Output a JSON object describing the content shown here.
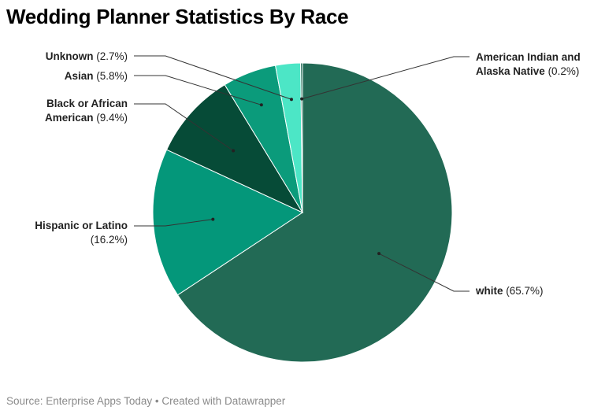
{
  "title": "Wedding Planner Statistics By Race",
  "source_label": "Source:",
  "source_name": "Enterprise Apps Today",
  "separator": "•",
  "credit": "Created with Datawrapper",
  "chart_data": {
    "type": "pie",
    "title": "Wedding Planner Statistics By Race",
    "slices": [
      {
        "name": "white",
        "value": 65.7,
        "value_label": "(65.7%)",
        "color": "#226a55",
        "label_lines": [
          {
            "name": "white",
            "value": "(65.7%)"
          }
        ]
      },
      {
        "name": "Hispanic or Latino",
        "value": 16.2,
        "value_label": "(16.2%)",
        "color": "#04977a",
        "label_lines": [
          {
            "name": "Hispanic or Latino",
            "value": ""
          },
          {
            "name": "",
            "value": "(16.2%)"
          }
        ]
      },
      {
        "name": "Black or African American",
        "value": 9.4,
        "value_label": "(9.4%)",
        "color": "#064b37",
        "label_lines": [
          {
            "name": "Black or African",
            "value": ""
          },
          {
            "name": "American",
            "value": "(9.4%)"
          }
        ]
      },
      {
        "name": "Asian",
        "value": 5.8,
        "value_label": "(5.8%)",
        "color": "#0b9b7b",
        "label_lines": [
          {
            "name": "Asian",
            "value": "(5.8%)"
          }
        ]
      },
      {
        "name": "Unknown",
        "value": 2.7,
        "value_label": "(2.7%)",
        "color": "#4ce6c6",
        "label_lines": [
          {
            "name": "Unknown",
            "value": "(2.7%)"
          }
        ]
      },
      {
        "name": "American Indian and Alaska Native",
        "value": 0.2,
        "value_label": "(0.2%)",
        "color": "#226a55",
        "label_lines": [
          {
            "name": "American Indian and",
            "value": ""
          },
          {
            "name": "Alaska Native",
            "value": "(0.2%)"
          }
        ]
      }
    ]
  }
}
